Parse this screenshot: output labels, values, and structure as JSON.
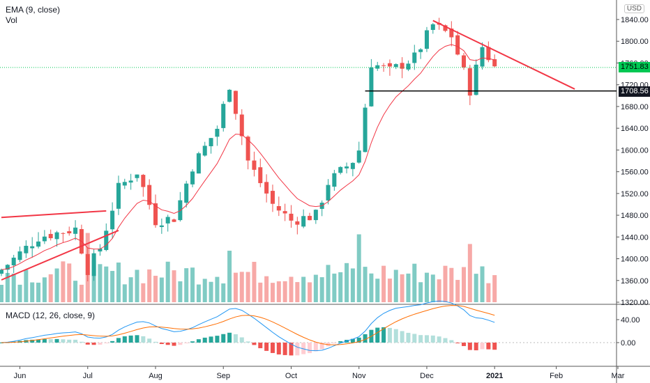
{
  "legend": {
    "ema": "EMA (9, close)",
    "vol": "Vol",
    "macd": "MACD (12, 26, close, 9)"
  },
  "currency": "USD",
  "price_axis": {
    "ticks": [
      1840,
      1800,
      1760,
      1720,
      1680,
      1640,
      1600,
      1560,
      1520,
      1480,
      1440,
      1400,
      1360,
      1320
    ]
  },
  "macd_axis": {
    "ticks": [
      "40.00",
      "0.00"
    ]
  },
  "time_axis": {
    "labels": [
      "Jun",
      "Jul",
      "Aug",
      "Sep",
      "Oct",
      "Nov",
      "Dec",
      "2021",
      "Feb",
      "Mar"
    ]
  },
  "last_price": {
    "label": "1751.83",
    "color": "#00c853"
  },
  "support_level": {
    "label": "1708.56",
    "color": "#000000"
  },
  "colors": {
    "up": "#26a69a",
    "down": "#ef5350",
    "ema": "#f23645",
    "macd_line": "#2196f3",
    "signal_line": "#ff6d00",
    "trend": "#f23645"
  },
  "chart_data": {
    "type": "candlestick",
    "symbol_currency": "USD",
    "ema_period": 9,
    "price_range": [
      1320,
      1840
    ],
    "macd_params": [
      12,
      26,
      9
    ],
    "macd_range": [
      -60,
      60
    ],
    "timeline": {
      "months": [
        {
          "label": "Jun",
          "index": 3
        },
        {
          "label": "Jul",
          "index": 14
        },
        {
          "label": "Aug",
          "index": 25
        },
        {
          "label": "Sep",
          "index": 36
        },
        {
          "label": "Oct",
          "index": 47
        },
        {
          "label": "Nov",
          "index": 58
        },
        {
          "label": "Dec",
          "index": 69
        },
        {
          "label": "2021",
          "index": 80
        },
        {
          "label": "Feb",
          "index": 90
        },
        {
          "label": "Mar",
          "index": 100
        }
      ]
    },
    "close_path": [
      [
        0,
        1380
      ],
      [
        6,
        1440
      ],
      [
        12,
        1455
      ],
      [
        14,
        1380
      ],
      [
        16,
        1420
      ],
      [
        19,
        1530
      ],
      [
        22,
        1560
      ],
      [
        25,
        1470
      ],
      [
        28,
        1475
      ],
      [
        31,
        1570
      ],
      [
        35,
        1640
      ],
      [
        37,
        1720
      ],
      [
        40,
        1580
      ],
      [
        44,
        1500
      ],
      [
        47,
        1470
      ],
      [
        51,
        1480
      ],
      [
        53,
        1540
      ],
      [
        57,
        1580
      ],
      [
        58,
        1600
      ],
      [
        60,
        1760
      ],
      [
        63,
        1745
      ],
      [
        67,
        1770
      ],
      [
        70,
        1830
      ],
      [
        73,
        1810
      ],
      [
        76,
        1710
      ],
      [
        78,
        1790
      ],
      [
        80,
        1752
      ]
    ],
    "trendlines": [
      {
        "name": "upper-wedge",
        "points": [
          [
            0,
            1476
          ],
          [
            17,
            1488
          ]
        ]
      },
      {
        "name": "lower-wedge",
        "points": [
          [
            0,
            1361
          ],
          [
            19,
            1452
          ]
        ]
      },
      {
        "name": "descending-resistance",
        "points": [
          [
            70,
            1838
          ],
          [
            93,
            1712
          ]
        ]
      },
      {
        "name": "support",
        "value": 1708.56,
        "points": [
          [
            59,
            1708.56
          ],
          [
            100,
            1708.56
          ]
        ]
      }
    ]
  }
}
